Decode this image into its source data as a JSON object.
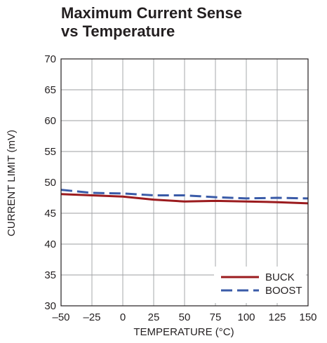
{
  "chart_data": {
    "type": "line",
    "title_lines": [
      "Maximum Current Sense",
      "vs Temperature"
    ],
    "xlabel": "TEMPERATURE (°C)",
    "ylabel": "CURRENT LIMIT (mV)",
    "xlim": [
      -50,
      150
    ],
    "ylim": [
      30,
      70
    ],
    "xticks": [
      -50,
      -25,
      0,
      25,
      50,
      75,
      100,
      125,
      150
    ],
    "xtick_labels": [
      "–50",
      "–25",
      "0",
      "25",
      "50",
      "75",
      "100",
      "125",
      "150"
    ],
    "yticks": [
      30,
      35,
      40,
      45,
      50,
      55,
      60,
      65,
      70
    ],
    "ytick_labels": [
      "30",
      "35",
      "40",
      "45",
      "50",
      "55",
      "60",
      "65",
      "70"
    ],
    "grid": true,
    "legend_position": "bottom-right",
    "series": [
      {
        "name": "BUCK",
        "color": "#9b1b1e",
        "style": "solid",
        "x": [
          -50,
          -25,
          0,
          25,
          50,
          75,
          100,
          125,
          150
        ],
        "y": [
          48.1,
          47.9,
          47.7,
          47.2,
          46.9,
          47.0,
          46.9,
          46.8,
          46.6
        ]
      },
      {
        "name": "BOOST",
        "color": "#3a5ba8",
        "style": "dashed",
        "x": [
          -50,
          -25,
          0,
          25,
          50,
          75,
          100,
          125,
          150
        ],
        "y": [
          48.8,
          48.3,
          48.2,
          47.9,
          47.9,
          47.6,
          47.4,
          47.5,
          47.4
        ]
      }
    ]
  }
}
